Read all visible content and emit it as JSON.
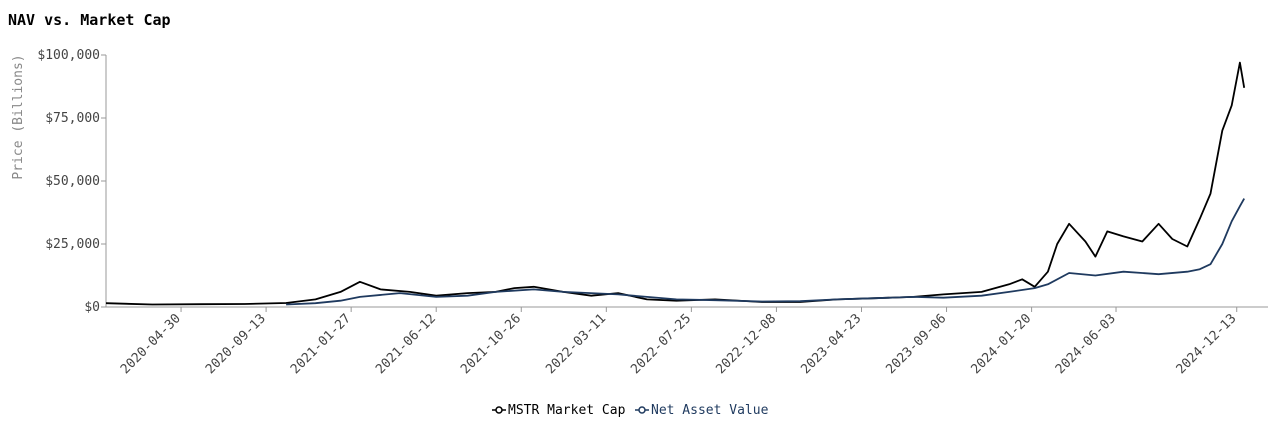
{
  "chart_data": {
    "type": "line",
    "title": "NAV vs. Market Cap",
    "ylabel": "Price (Billions)",
    "xlabel": "",
    "ylim": [
      0,
      100000
    ],
    "y_ticks": [
      0,
      25000,
      50000,
      75000,
      100000
    ],
    "y_tick_labels": [
      "$0",
      "$25,000",
      "$50,000",
      "$75,000",
      "$100,000"
    ],
    "x_range": [
      "2020-01-01",
      "2025-02-01"
    ],
    "x_ticks": [
      "2020-04-30",
      "2020-09-13",
      "2021-01-27",
      "2021-06-12",
      "2021-10-26",
      "2022-03-11",
      "2022-07-25",
      "2022-12-08",
      "2023-04-23",
      "2023-09-06",
      "2024-01-20",
      "2024-06-03",
      "2024-12-13"
    ],
    "grid": false,
    "legend_position": "bottom",
    "series": [
      {
        "name": "MSTR Market Cap",
        "color": "#000000",
        "points": [
          [
            "2020-01-01",
            1500
          ],
          [
            "2020-03-15",
            1000
          ],
          [
            "2020-06-01",
            1100
          ],
          [
            "2020-08-10",
            1200
          ],
          [
            "2020-10-15",
            1600
          ],
          [
            "2020-12-01",
            3000
          ],
          [
            "2021-01-10",
            6000
          ],
          [
            "2021-02-10",
            10000
          ],
          [
            "2021-03-15",
            7000
          ],
          [
            "2021-05-01",
            6000
          ],
          [
            "2021-06-12",
            4500
          ],
          [
            "2021-08-01",
            5500
          ],
          [
            "2021-09-15",
            6000
          ],
          [
            "2021-10-15",
            7500
          ],
          [
            "2021-11-15",
            8000
          ],
          [
            "2022-01-01",
            6000
          ],
          [
            "2022-02-15",
            4500
          ],
          [
            "2022-03-30",
            5500
          ],
          [
            "2022-05-15",
            3000
          ],
          [
            "2022-07-01",
            2500
          ],
          [
            "2022-09-01",
            3000
          ],
          [
            "2022-11-15",
            2000
          ],
          [
            "2023-01-15",
            2000
          ],
          [
            "2023-03-15",
            3000
          ],
          [
            "2023-05-15",
            3500
          ],
          [
            "2023-07-15",
            4000
          ],
          [
            "2023-09-01",
            5000
          ],
          [
            "2023-11-01",
            6000
          ],
          [
            "2023-12-15",
            9000
          ],
          [
            "2024-01-05",
            11000
          ],
          [
            "2024-01-25",
            8000
          ],
          [
            "2024-02-15",
            14000
          ],
          [
            "2024-03-01",
            25000
          ],
          [
            "2024-03-20",
            33000
          ],
          [
            "2024-04-15",
            26000
          ],
          [
            "2024-05-01",
            20000
          ],
          [
            "2024-05-20",
            30000
          ],
          [
            "2024-06-15",
            28000
          ],
          [
            "2024-07-15",
            26000
          ],
          [
            "2024-08-10",
            33000
          ],
          [
            "2024-09-01",
            27000
          ],
          [
            "2024-09-25",
            24000
          ],
          [
            "2024-10-15",
            35000
          ],
          [
            "2024-11-01",
            45000
          ],
          [
            "2024-11-20",
            70000
          ],
          [
            "2024-12-05",
            80000
          ],
          [
            "2024-12-18",
            97000
          ],
          [
            "2024-12-25",
            87000
          ]
        ]
      },
      {
        "name": "Net Asset Value",
        "color": "#1f3a5f",
        "points": [
          [
            "2020-10-15",
            1000
          ],
          [
            "2020-12-01",
            1500
          ],
          [
            "2021-01-10",
            2500
          ],
          [
            "2021-02-10",
            4000
          ],
          [
            "2021-04-15",
            5500
          ],
          [
            "2021-06-12",
            4000
          ],
          [
            "2021-08-01",
            4500
          ],
          [
            "2021-09-15",
            6000
          ],
          [
            "2021-11-15",
            7000
          ],
          [
            "2022-01-01",
            6000
          ],
          [
            "2022-03-30",
            5000
          ],
          [
            "2022-05-15",
            4000
          ],
          [
            "2022-07-01",
            3000
          ],
          [
            "2022-09-01",
            2700
          ],
          [
            "2022-11-15",
            2200
          ],
          [
            "2023-01-15",
            2300
          ],
          [
            "2023-03-15",
            3000
          ],
          [
            "2023-05-15",
            3500
          ],
          [
            "2023-07-15",
            4000
          ],
          [
            "2023-09-01",
            3700
          ],
          [
            "2023-11-01",
            4500
          ],
          [
            "2023-12-15",
            6000
          ],
          [
            "2024-01-25",
            7500
          ],
          [
            "2024-02-15",
            9000
          ],
          [
            "2024-03-20",
            13500
          ],
          [
            "2024-05-01",
            12500
          ],
          [
            "2024-06-15",
            14000
          ],
          [
            "2024-08-10",
            13000
          ],
          [
            "2024-09-25",
            14000
          ],
          [
            "2024-10-15",
            15000
          ],
          [
            "2024-11-01",
            17000
          ],
          [
            "2024-11-20",
            25000
          ],
          [
            "2024-12-05",
            34000
          ],
          [
            "2024-12-18",
            40000
          ],
          [
            "2024-12-25",
            43000
          ]
        ]
      }
    ]
  }
}
